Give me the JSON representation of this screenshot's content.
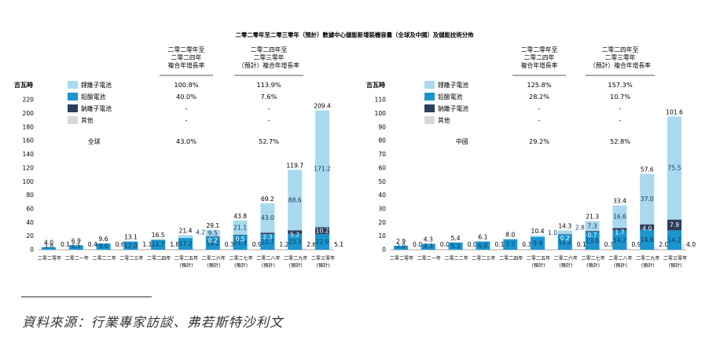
{
  "title": "二零二零年至二零三零年（預計）數據中心儲能新增裝機容量（全球及中國）及儲能技術分佈",
  "colors": {
    "lithium": "#a8d9ef",
    "lead": "#1a95cf",
    "sodium": "#2c3e5c",
    "other": "#d9d9d9"
  },
  "source_text": "資料來源：行業專家訪談、弗若斯特沙利文",
  "chart_data": [
    {
      "type": "bar",
      "stacked": true,
      "region": "全球",
      "yunit": "吉瓦時",
      "ylim": [
        0,
        220
      ],
      "yticks": [
        0,
        20,
        40,
        60,
        80,
        100,
        120,
        140,
        160,
        180,
        200,
        220
      ],
      "categories": [
        "二零二零年",
        "二零二一年",
        "二零二二年",
        "二零二三年",
        "二零二四年",
        "二零二五年\n(預計)",
        "二零二六年\n(預計)",
        "二零二七年\n(預計)",
        "二零二八年\n(預計)",
        "二零二九年\n(預計)",
        "二零三零年\n(預計)"
      ],
      "totals": [
        "4.0",
        "6.9",
        "9.6",
        "13.1",
        "16.5",
        "21.4",
        "29.1",
        "43.8",
        "69.2",
        "119.7",
        "209.4"
      ],
      "series": [
        {
          "name": "鋰離子電池",
          "color_key": "lithium",
          "values": [
            0,
            0,
            0,
            0,
            0,
            4.2,
            9.5,
            21.1,
            43.0,
            88.6,
            171.2
          ],
          "labels": [
            "",
            "",
            "",
            "",
            "",
            "4.2",
            "9.5",
            "21.1",
            "43.0",
            "88.6",
            "171.2"
          ]
        },
        {
          "name": "鉛酸電池",
          "color_key": "lead",
          "values": [
            3.8,
            6.5,
            9.0,
            12.0,
            14.7,
            17.2,
            19.2,
            21.3,
            22.7,
            23.3,
            22.9
          ],
          "labels": [
            "3.8",
            "6.5",
            "9.0",
            "12.0",
            "14.7",
            "17.2",
            "19.2",
            "21.3",
            "22.7",
            "23.3",
            "22.9"
          ]
        },
        {
          "name": "鈉離子電池",
          "color_key": "sodium",
          "values": [
            0,
            0,
            0,
            0,
            0,
            0,
            0.2,
            0.5,
            2.3,
            5.2,
            10.2
          ],
          "labels": [
            "",
            "",
            "",
            "",
            "",
            "",
            "0.2",
            "0.5",
            "2.3",
            "5.2",
            "10.2"
          ]
        },
        {
          "name": "其他",
          "color_key": "other",
          "values": [
            0.1,
            0.4,
            0.6,
            1.1,
            1.8,
            0,
            0.3,
            0.9,
            1.2,
            2.6,
            5.1
          ],
          "labels": [
            "0.1",
            "0.4",
            "0.6",
            "1.1",
            "1.8",
            "",
            "0.3",
            "0.9",
            "1.2",
            "2.6",
            "5.1"
          ]
        }
      ],
      "cagr_table": {
        "col1_header": [
          "二零二零年至",
          "二零二四年",
          "複合年增長率"
        ],
        "col2_header": [
          "二零二四年至",
          "二零三零年",
          "（預計）複合年增長率"
        ],
        "rows": [
          {
            "label": "鋰離子電池",
            "col1": "100.8%",
            "col2": "113.9%"
          },
          {
            "label": "鉛酸電池",
            "col1": "40.0%",
            "col2": "7.6%"
          },
          {
            "label": "鈉離子電池",
            "col1": "-",
            "col2": "-"
          },
          {
            "label": "其他",
            "col1": "-",
            "col2": "-"
          },
          {
            "label": "全球",
            "col1": "43.0%",
            "col2": "52.7%"
          }
        ]
      }
    },
    {
      "type": "bar",
      "stacked": true,
      "region": "中國",
      "yunit": "吉瓦時",
      "ylim": [
        0,
        110
      ],
      "yticks": [
        0,
        10,
        20,
        30,
        40,
        50,
        60,
        70,
        80,
        90,
        100,
        110
      ],
      "categories": [
        "二零二零年",
        "二零二一年",
        "二零二二年",
        "二零二三年",
        "二零二四年",
        "二零二五年\n(預計)",
        "二零二六年\n(預計)",
        "二零二七年\n(預計)",
        "二零二八年\n(預計)",
        "二零二九年\n(預計)",
        "二零三零年\n(預計)"
      ],
      "totals": [
        "2.9",
        "4.3",
        "5.4",
        "6.1",
        "8.0",
        "10.4",
        "14.3",
        "21.3",
        "33.4",
        "57.6",
        "101.6"
      ],
      "series": [
        {
          "name": "鋰離子電池",
          "color_key": "lithium",
          "values": [
            0,
            0,
            0,
            0,
            0,
            1.0,
            2.8,
            7.3,
            16.6,
            37.0,
            75.5
          ],
          "labels": [
            "",
            "",
            "",
            "",
            "",
            "1.0",
            "2.8",
            "7.3",
            "16.6",
            "37.0",
            "75.5"
          ]
        },
        {
          "name": "鉛酸電池",
          "color_key": "lead",
          "values": [
            2.9,
            4.3,
            5.3,
            6.0,
            7.7,
            9.4,
            11.2,
            13.0,
            14.2,
            14.6,
            14.2
          ],
          "labels": [
            "2.9",
            "4.3",
            "5.3",
            "6.0",
            "7.7",
            "9.4",
            "11.2",
            "13.0",
            "14.2",
            "14.6",
            "14.2"
          ]
        },
        {
          "name": "鈉離子電池",
          "color_key": "sodium",
          "values": [
            0,
            0,
            0,
            0,
            0,
            0,
            0.2,
            0.7,
            1.7,
            4.0,
            7.9
          ],
          "labels": [
            "",
            "",
            "",
            "",
            "",
            "",
            "0.2",
            "0.7",
            "1.7",
            "4.0",
            "7.9"
          ]
        },
        {
          "name": "其他",
          "color_key": "other",
          "values": [
            0.0,
            0.0,
            0.0,
            0.1,
            0.3,
            0,
            0.1,
            0.3,
            0.9,
            2.0,
            4.0
          ],
          "labels": [
            "0.0",
            "0.0",
            "0.0",
            "0.1",
            "0.3",
            "",
            "0.1",
            "0.3",
            "0.9",
            "2.0",
            "4.0"
          ]
        }
      ],
      "cagr_table": {
        "col1_header": [
          "二零二零年至",
          "二零二四年",
          "複合年增長率"
        ],
        "col2_header": [
          "二零二四年至",
          "二零三零年",
          "（預計）複合年增長率"
        ],
        "rows": [
          {
            "label": "鋰離子電池",
            "col1": "125.8%",
            "col2": "157.3%"
          },
          {
            "label": "鉛酸電池",
            "col1": "28.2%",
            "col2": "10.7%"
          },
          {
            "label": "鈉離子電池",
            "col1": "-",
            "col2": "-"
          },
          {
            "label": "其他",
            "col1": "-",
            "col2": "-"
          },
          {
            "label": "中國",
            "col1": "29.2%",
            "col2": "52.8%"
          }
        ]
      }
    }
  ]
}
